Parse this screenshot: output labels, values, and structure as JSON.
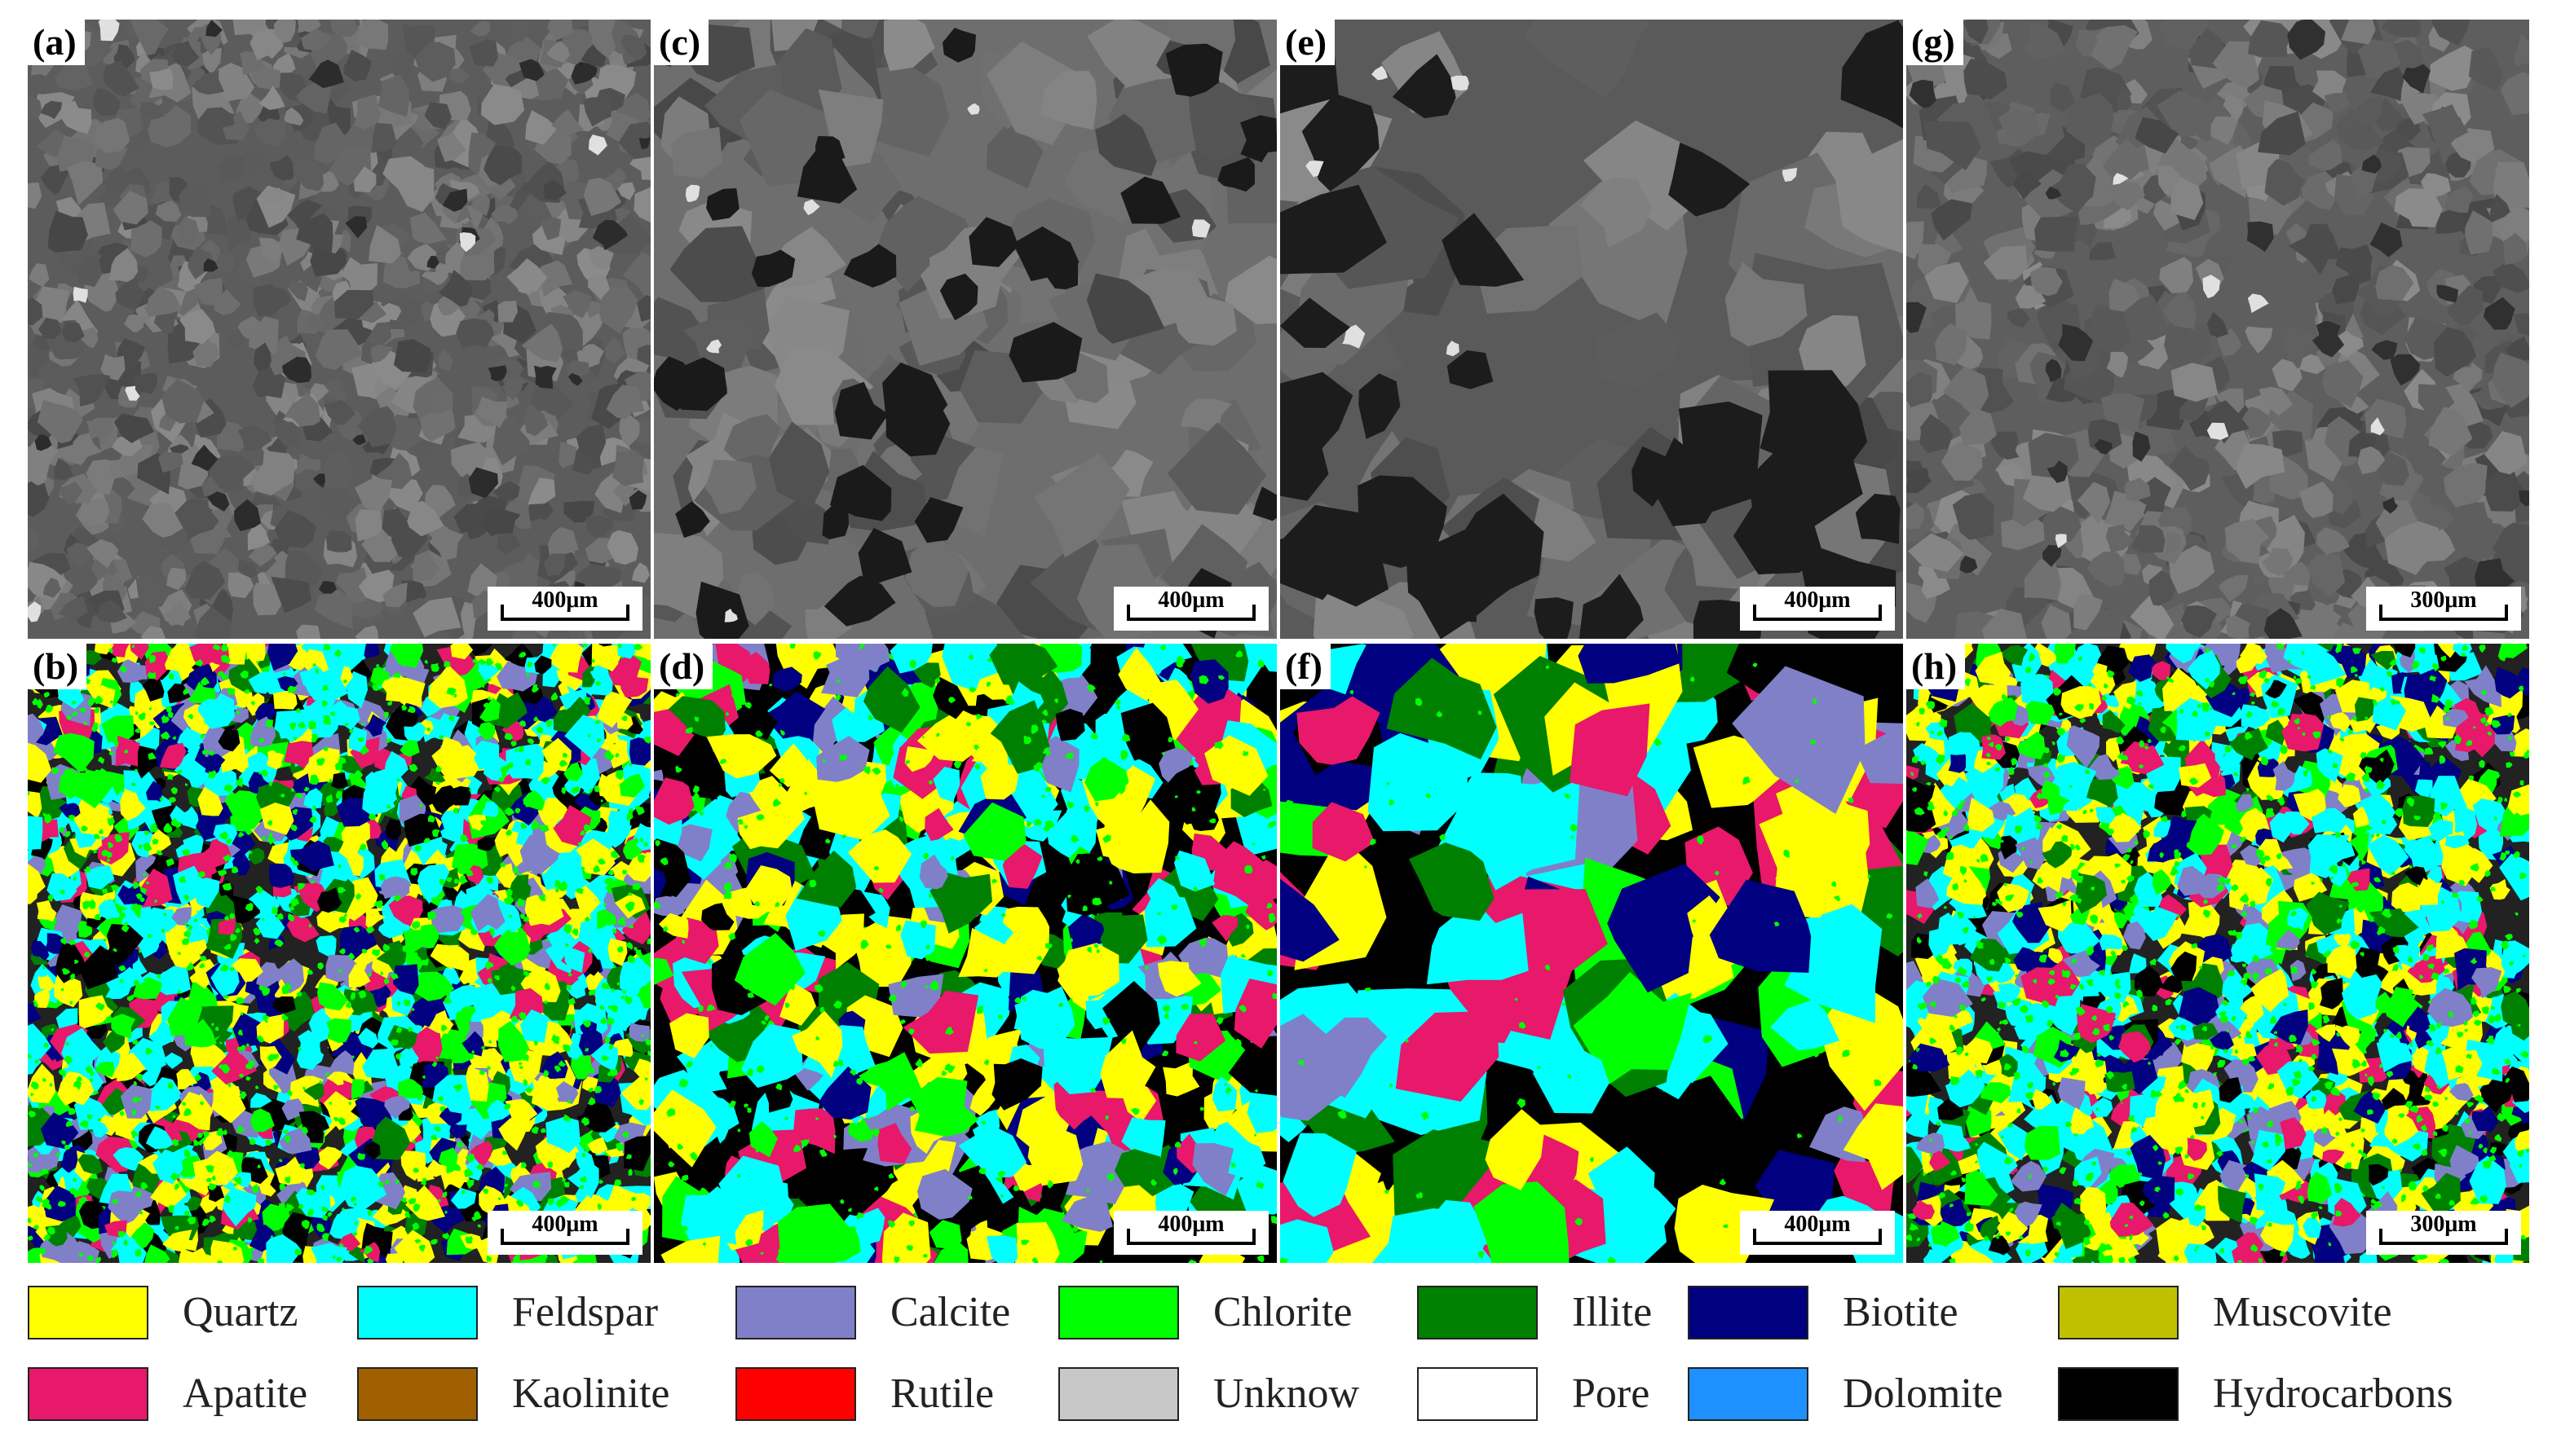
{
  "panels": [
    {
      "label": "(a)",
      "scale": "400μm",
      "kind": "sem"
    },
    {
      "label": "(c)",
      "scale": "400μm",
      "kind": "sem"
    },
    {
      "label": "(e)",
      "scale": "400μm",
      "kind": "sem"
    },
    {
      "label": "(g)",
      "scale": "300μm",
      "kind": "sem"
    },
    {
      "label": "(b)",
      "scale": "400μm",
      "kind": "map"
    },
    {
      "label": "(d)",
      "scale": "400μm",
      "kind": "map"
    },
    {
      "label": "(f)",
      "scale": "400μm",
      "kind": "map"
    },
    {
      "label": "(h)",
      "scale": "300μm",
      "kind": "map"
    }
  ],
  "legend": [
    {
      "label": "Quartz",
      "color": "#ffff00"
    },
    {
      "label": "Feldspar",
      "color": "#00ffff"
    },
    {
      "label": "Calcite",
      "color": "#8080c8"
    },
    {
      "label": "Chlorite",
      "color": "#00ff00"
    },
    {
      "label": "Illite",
      "color": "#008000"
    },
    {
      "label": "Biotite",
      "color": "#000080"
    },
    {
      "label": "Muscovite",
      "color": "#c0c000"
    },
    {
      "label": "Apatite",
      "color": "#e8186a"
    },
    {
      "label": "Kaolinite",
      "color": "#a06000"
    },
    {
      "label": "Rutile",
      "color": "#ff0000"
    },
    {
      "label": "Unknow",
      "color": "#c8c8c8"
    },
    {
      "label": "Pore",
      "color": "#ffffff"
    },
    {
      "label": "Dolomite",
      "color": "#1e90ff"
    },
    {
      "label": "Hydrocarbons",
      "color": "#000000"
    }
  ]
}
